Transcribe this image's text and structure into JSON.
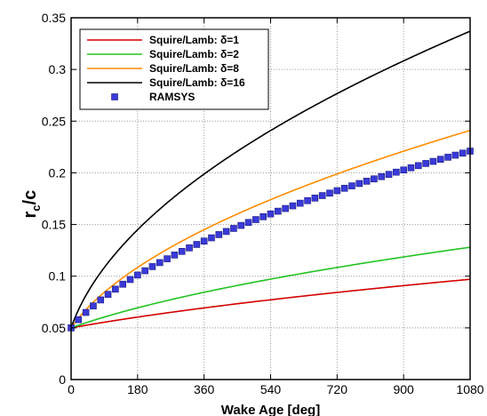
{
  "chart_data": {
    "type": "line",
    "title": "",
    "xlabel": "Wake Age [deg]",
    "ylabel_main": "r",
    "ylabel_sub": "c",
    "ylabel_tail": "/c",
    "xlim": [
      0,
      1080
    ],
    "ylim": [
      0,
      0.35
    ],
    "xticks": [
      0,
      180,
      360,
      540,
      720,
      900,
      1080
    ],
    "yticks": [
      0,
      0.05,
      0.1,
      0.15,
      0.2,
      0.25,
      0.3,
      0.35
    ],
    "ytick_labels": [
      "0",
      "0.05",
      "0.1",
      "0.15",
      "0.2",
      "0.25",
      "0.3",
      "0.35"
    ],
    "grid": true,
    "legend_position": "top-left",
    "series": [
      {
        "name": "Squire/Lamb: δ=1",
        "color": "#d40000",
        "kind": "line",
        "r0": 0.05,
        "rend": 0.097
      },
      {
        "name": "Squire/Lamb: δ=2",
        "color": "#22c322",
        "kind": "line",
        "r0": 0.05,
        "rend": 0.128
      },
      {
        "name": "Squire/Lamb: δ=8",
        "color": "#ff8c00",
        "kind": "line",
        "r0": 0.05,
        "rend": 0.241
      },
      {
        "name": "Squire/Lamb: δ=16",
        "color": "#000000",
        "kind": "line",
        "r0": 0.05,
        "rend": 0.337
      },
      {
        "name": "RAMSYS",
        "color": "#3a3ad8",
        "kind": "marker",
        "r0": 0.05,
        "rend": 0.221,
        "step_deg": 20
      }
    ]
  }
}
